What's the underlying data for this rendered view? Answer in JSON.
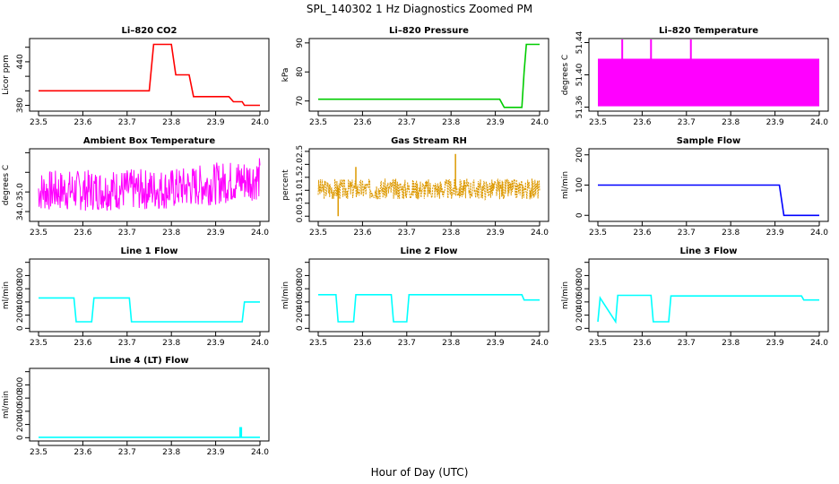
{
  "figure": {
    "title": "SPL_140302  1 Hz Diagnostics Zoomed PM",
    "xlabel": "Hour of Day (UTC)"
  },
  "chart_data": [
    {
      "type": "line",
      "title": "Li–820 CO2",
      "ylabel": "Licor ppm",
      "color": "#ff0000",
      "style": "steps",
      "xlim": [
        23.5,
        24.0
      ],
      "xticks": [
        23.5,
        23.6,
        23.7,
        23.8,
        23.9,
        24.0
      ],
      "ylim": [
        372,
        472
      ],
      "yticks": [
        380,
        400,
        420,
        440,
        460
      ],
      "ytick_labels": [
        "380",
        "",
        "",
        "440",
        ""
      ],
      "series": [
        {
          "name": "CO2",
          "x": [
            23.5,
            23.75,
            23.76,
            23.8,
            23.81,
            23.84,
            23.85,
            23.93,
            23.94,
            23.96,
            23.965,
            24.0
          ],
          "y": [
            400,
            400,
            464,
            464,
            422,
            422,
            392,
            392,
            385,
            385,
            380,
            380
          ]
        }
      ]
    },
    {
      "type": "line",
      "title": "Li–820 Pressure",
      "ylabel": "kPa",
      "color": "#00cc00",
      "style": "steps",
      "xlim": [
        23.5,
        24.0
      ],
      "xticks": [
        23.5,
        23.6,
        23.7,
        23.8,
        23.9,
        24.0
      ],
      "ylim": [
        66.5,
        91.5
      ],
      "yticks": [
        70,
        80,
        90
      ],
      "ytick_labels": [
        "70",
        "80",
        "90"
      ],
      "series": [
        {
          "name": "Pressure",
          "x": [
            23.5,
            23.91,
            23.92,
            23.96,
            23.965,
            23.97,
            24.0
          ],
          "y": [
            70.6,
            70.6,
            67.8,
            67.8,
            80,
            89.5,
            89.5
          ]
        }
      ]
    },
    {
      "type": "line",
      "title": "Li–820 Temperature",
      "ylabel": "degrees C",
      "color": "#ff00ff",
      "style": "band",
      "xlim": [
        23.5,
        24.0
      ],
      "xticks": [
        23.5,
        23.6,
        23.7,
        23.8,
        23.9,
        24.0
      ],
      "ylim": [
        51.355,
        51.445
      ],
      "yticks": [
        51.36,
        51.4,
        51.44
      ],
      "ytick_labels": [
        "51.36",
        "51.40",
        "51.44"
      ],
      "band": {
        "low": 51.361,
        "high": 51.42
      },
      "spikes": [
        {
          "x": 23.555,
          "y": 51.445
        },
        {
          "x": 23.62,
          "y": 51.445
        },
        {
          "x": 23.71,
          "y": 51.445
        }
      ]
    },
    {
      "type": "line",
      "title": "Ambient Box Temperature",
      "ylabel": "degrees C",
      "color": "#ff00ff",
      "style": "noise",
      "xlim": [
        23.5,
        24.0
      ],
      "xticks": [
        23.5,
        23.6,
        23.7,
        23.8,
        23.9,
        24.0
      ],
      "ylim": [
        33.5,
        37.2
      ],
      "yticks": [
        34,
        35,
        36,
        37
      ],
      "ytick_labels": [
        "34.0",
        "35.0",
        "",
        ""
      ],
      "noise": {
        "x": [
          23.5,
          23.8,
          24.0
        ],
        "low": [
          34.0,
          34.1,
          34.6
        ],
        "high": [
          36.1,
          36.2,
          36.8
        ],
        "seed": 7,
        "n": 420
      }
    },
    {
      "type": "line",
      "title": "Gas Stream RH",
      "ylabel": "percent",
      "color": "#dd9900",
      "style": "noise",
      "xlim": [
        23.5,
        24.0
      ],
      "xticks": [
        23.5,
        23.6,
        23.7,
        23.8,
        23.9,
        24.0
      ],
      "ylim": [
        -0.2,
        2.6
      ],
      "yticks": [
        0,
        0.5,
        1,
        1.5,
        2,
        2.5
      ],
      "ytick_labels": [
        "0.0",
        "0.5",
        "1.0",
        "1.5",
        "2.0",
        "2.5"
      ],
      "noise": {
        "x": [
          23.5,
          24.0
        ],
        "low": [
          0.65,
          0.65
        ],
        "high": [
          1.45,
          1.45
        ],
        "seed": 3,
        "n": 520
      },
      "spikes": [
        {
          "x": 23.545,
          "y": 0.0
        },
        {
          "x": 23.81,
          "y": 2.4
        },
        {
          "x": 23.585,
          "y": 1.9
        }
      ]
    },
    {
      "type": "line",
      "title": "Sample Flow",
      "ylabel": "ml/min",
      "color": "#0000ff",
      "style": "steps",
      "xlim": [
        23.5,
        24.0
      ],
      "xticks": [
        23.5,
        23.6,
        23.7,
        23.8,
        23.9,
        24.0
      ],
      "ylim": [
        -20,
        220
      ],
      "yticks": [
        0,
        100,
        200
      ],
      "ytick_labels": [
        "0",
        "100",
        "200"
      ],
      "series": [
        {
          "name": "Sample Flow",
          "x": [
            23.5,
            23.91,
            23.92,
            24.0
          ],
          "y": [
            100,
            100,
            0,
            0
          ]
        }
      ]
    },
    {
      "type": "line",
      "title": "Line 1 Flow",
      "ylabel": "ml/min",
      "color": "#00ffff",
      "style": "steps",
      "xlim": [
        23.5,
        24.0
      ],
      "xticks": [
        23.5,
        23.6,
        23.7,
        23.8,
        23.9,
        24.0
      ],
      "ylim": [
        -50,
        1050
      ],
      "yticks": [
        0,
        200,
        400,
        600,
        800,
        1000
      ],
      "ytick_labels": [
        "0",
        "200",
        "400",
        "600",
        "800",
        ""
      ],
      "series": [
        {
          "name": "Line 1",
          "x": [
            23.5,
            23.58,
            23.585,
            23.62,
            23.625,
            23.705,
            23.71,
            23.96,
            23.965,
            24.0
          ],
          "y": [
            460,
            460,
            100,
            100,
            460,
            460,
            100,
            100,
            400,
            400
          ]
        }
      ]
    },
    {
      "type": "line",
      "title": "Line 2 Flow",
      "ylabel": "ml/min",
      "color": "#00ffff",
      "style": "steps",
      "xlim": [
        23.5,
        24.0
      ],
      "xticks": [
        23.5,
        23.6,
        23.7,
        23.8,
        23.9,
        24.0
      ],
      "ylim": [
        -50,
        1050
      ],
      "yticks": [
        0,
        200,
        400,
        600,
        800,
        1000
      ],
      "ytick_labels": [
        "0",
        "200",
        "400",
        "600",
        "800",
        ""
      ],
      "series": [
        {
          "name": "Line 2",
          "x": [
            23.5,
            23.54,
            23.545,
            23.58,
            23.585,
            23.665,
            23.67,
            23.7,
            23.705,
            23.96,
            23.965,
            24.0
          ],
          "y": [
            510,
            510,
            100,
            100,
            510,
            510,
            100,
            100,
            510,
            510,
            430,
            430
          ]
        }
      ]
    },
    {
      "type": "line",
      "title": "Line 3 Flow",
      "ylabel": "ml/min",
      "color": "#00ffff",
      "style": "steps",
      "xlim": [
        23.5,
        24.0
      ],
      "xticks": [
        23.5,
        23.6,
        23.7,
        23.8,
        23.9,
        24.0
      ],
      "ylim": [
        -50,
        1050
      ],
      "yticks": [
        0,
        200,
        400,
        600,
        800,
        1000
      ],
      "ytick_labels": [
        "0",
        "200",
        "400",
        "600",
        "800",
        ""
      ],
      "series": [
        {
          "name": "Line 3",
          "x": [
            23.5,
            23.505,
            23.54,
            23.545,
            23.62,
            23.625,
            23.66,
            23.665,
            23.96,
            23.965,
            24.0
          ],
          "y": [
            100,
            460,
            100,
            500,
            500,
            100,
            100,
            490,
            490,
            430,
            430
          ]
        }
      ]
    },
    {
      "type": "line",
      "title": "Line 4 (LT) Flow",
      "ylabel": "ml/min",
      "color": "#00ffff",
      "style": "steps",
      "xlim": [
        23.5,
        24.0
      ],
      "xticks": [
        23.5,
        23.6,
        23.7,
        23.8,
        23.9,
        24.0
      ],
      "ylim": [
        -50,
        1050
      ],
      "yticks": [
        0,
        200,
        400,
        600,
        800,
        1000
      ],
      "ytick_labels": [
        "0",
        "200",
        "400",
        "600",
        "800",
        ""
      ],
      "series": [
        {
          "name": "Line 4",
          "x": [
            23.5,
            23.955,
            23.955,
            23.958,
            23.958,
            24.0
          ],
          "y": [
            5,
            5,
            150,
            150,
            5,
            5
          ]
        }
      ]
    }
  ]
}
